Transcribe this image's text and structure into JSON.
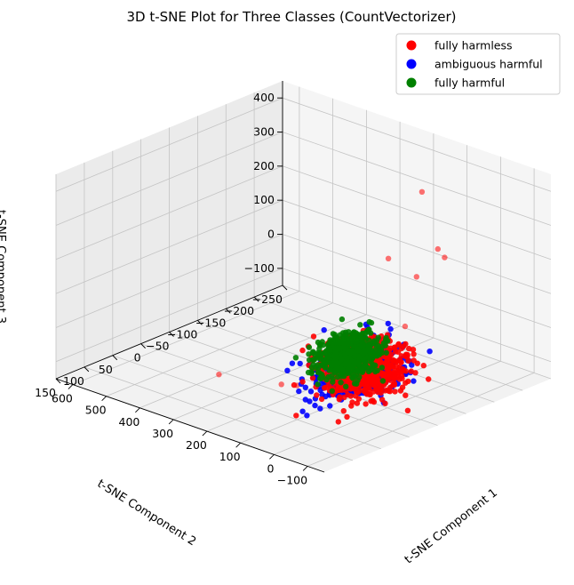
{
  "chart_data": {
    "type": "scatter",
    "projection": "3d",
    "title": "3D t-SNE Plot for Three Classes (CountVectorizer)",
    "xlabel": "t-SNE Component 1",
    "ylabel": "t-SNE Component 2",
    "zlabel": "t-SNE Component 3",
    "xlim": [
      -150,
      650
    ],
    "ylim": [
      -250,
      150
    ],
    "zlim": [
      -150,
      450
    ],
    "xticks": [
      -100,
      0,
      100,
      200,
      300,
      400,
      500,
      600
    ],
    "yticks": [
      -250,
      -200,
      -150,
      -100,
      -50,
      0,
      50,
      100,
      150
    ],
    "zticks": [
      -100,
      0,
      100,
      200,
      300,
      400
    ],
    "xtick_labels": [
      "−100",
      "0",
      "100",
      "200",
      "300",
      "400",
      "500",
      "600"
    ],
    "ytick_labels": [
      "−250",
      "−200",
      "−150",
      "−100",
      "−50",
      "0",
      "50",
      "100",
      "150"
    ],
    "ztick_labels": [
      "−100",
      "0",
      "100",
      "200",
      "300",
      "400"
    ],
    "grid": true,
    "legend_position": "top-right",
    "series": [
      {
        "name": "fully harmless",
        "color": "#ff0000",
        "clusters": [
          {
            "center": [
              -20,
              10,
              10
            ],
            "spread": [
              45,
              30,
              35
            ]
          }
        ],
        "outliers": [
          {
            "x": 150,
            "y": -200,
            "z": 330
          },
          {
            "x": -100,
            "y": -80,
            "z": 330
          },
          {
            "x": 150,
            "y": -240,
            "z": 110
          },
          {
            "x": 250,
            "y": -200,
            "z": 100
          },
          {
            "x": 200,
            "y": -220,
            "z": 50
          },
          {
            "x": -110,
            "y": 30,
            "z": 80
          },
          {
            "x": -70,
            "y": -40,
            "z": 120
          },
          {
            "x": 100,
            "y": 50,
            "z": -50
          },
          {
            "x": 130,
            "y": 60,
            "z": -50
          },
          {
            "x": 350,
            "y": 40,
            "z": -110
          },
          {
            "x": -200,
            "y": 100,
            "z": 80
          }
        ]
      },
      {
        "name": "ambiguous harmful",
        "color": "#0000ff",
        "clusters": [
          {
            "center": [
              -30,
              20,
              20
            ],
            "spread": [
              40,
              30,
              30
            ]
          }
        ],
        "outliers": []
      },
      {
        "name": "fully harmful",
        "color": "#008000",
        "clusters": [
          {
            "center": [
              50,
              -10,
              15
            ],
            "spread": [
              30,
              22,
              25
            ]
          }
        ],
        "outliers": []
      }
    ]
  }
}
